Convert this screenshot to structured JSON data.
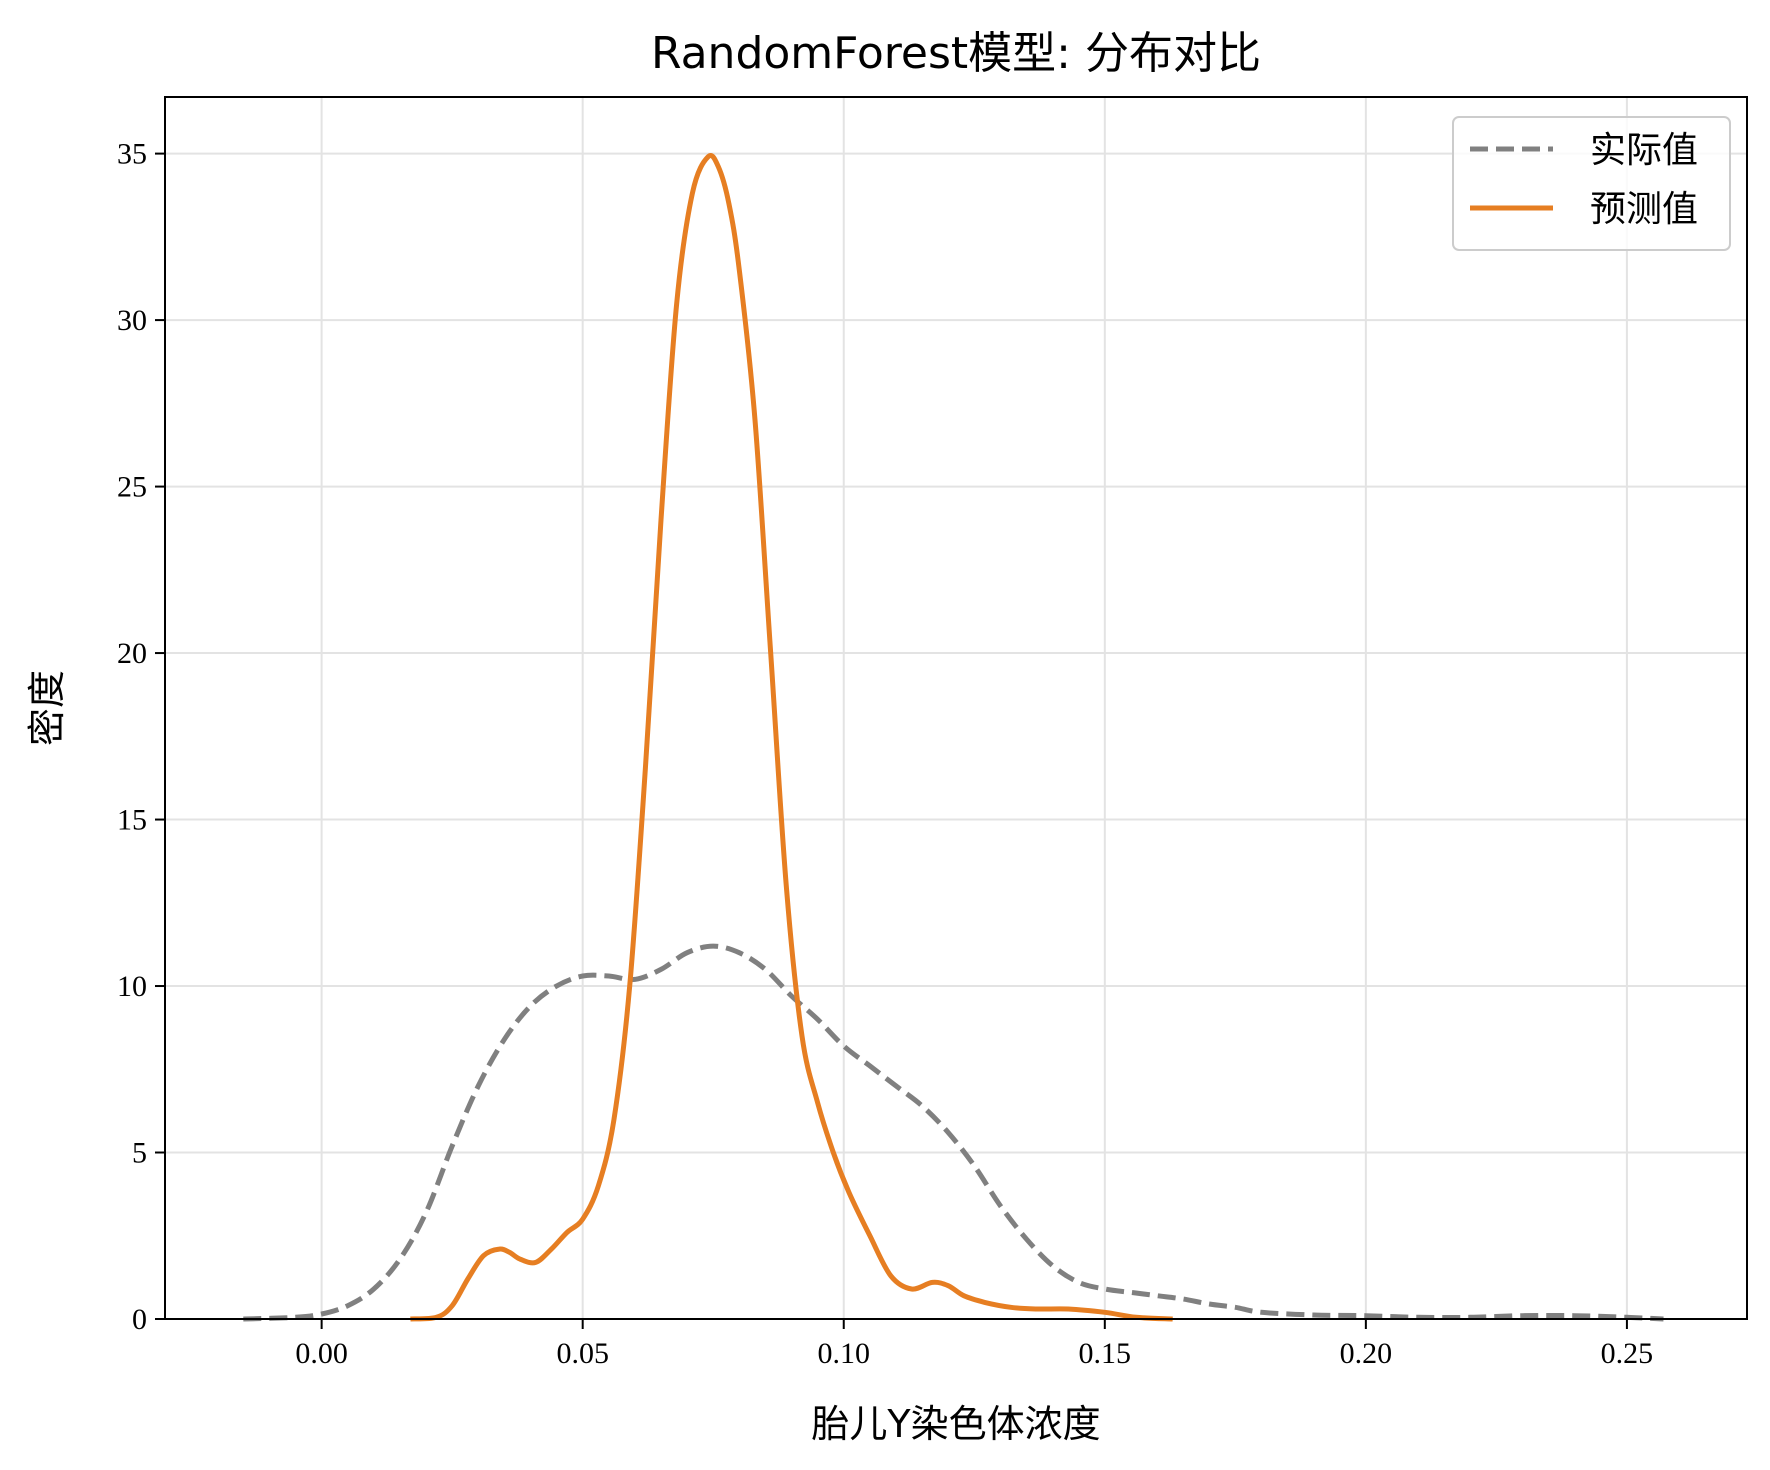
{
  "chart_data": {
    "type": "line",
    "title": "RandomForest模型: 分布对比",
    "xlabel": "胎儿Y染色体浓度",
    "ylabel": "密度",
    "xlim": [
      -0.03,
      0.273
    ],
    "ylim": [
      0,
      36.7
    ],
    "x_ticks": [
      0.0,
      0.05,
      0.1,
      0.15,
      0.2,
      0.25
    ],
    "x_tick_labels": [
      "0.00",
      "0.05",
      "0.10",
      "0.15",
      "0.20",
      "0.25"
    ],
    "y_ticks": [
      0,
      5,
      10,
      15,
      20,
      25,
      30,
      35
    ],
    "y_tick_labels": [
      "0",
      "5",
      "10",
      "15",
      "20",
      "25",
      "30",
      "35"
    ],
    "grid": true,
    "legend": {
      "placement": "top-right"
    },
    "series": [
      {
        "name": "实际值",
        "color": "#808080",
        "style": "dashed",
        "x": [
          -0.015,
          -0.005,
          0.0,
          0.005,
          0.01,
          0.015,
          0.02,
          0.025,
          0.03,
          0.035,
          0.04,
          0.045,
          0.05,
          0.055,
          0.06,
          0.065,
          0.07,
          0.075,
          0.08,
          0.085,
          0.09,
          0.095,
          0.1,
          0.105,
          0.11,
          0.115,
          0.12,
          0.125,
          0.13,
          0.135,
          0.14,
          0.145,
          0.15,
          0.155,
          0.16,
          0.165,
          0.17,
          0.175,
          0.18,
          0.19,
          0.2,
          0.21,
          0.22,
          0.23,
          0.24,
          0.25,
          0.257
        ],
        "y": [
          0.0,
          0.05,
          0.15,
          0.4,
          0.9,
          1.8,
          3.2,
          5.2,
          7.0,
          8.4,
          9.4,
          10.0,
          10.3,
          10.3,
          10.2,
          10.5,
          11.0,
          11.2,
          11.0,
          10.5,
          9.7,
          9.0,
          8.2,
          7.6,
          7.0,
          6.4,
          5.6,
          4.6,
          3.4,
          2.4,
          1.6,
          1.1,
          0.9,
          0.8,
          0.7,
          0.6,
          0.45,
          0.35,
          0.2,
          0.12,
          0.1,
          0.05,
          0.05,
          0.1,
          0.1,
          0.05,
          0.0
        ]
      },
      {
        "name": "预测值",
        "color": "#e67e22",
        "style": "solid",
        "x": [
          0.017,
          0.022,
          0.025,
          0.028,
          0.031,
          0.034,
          0.036,
          0.038,
          0.041,
          0.044,
          0.047,
          0.05,
          0.053,
          0.056,
          0.059,
          0.062,
          0.065,
          0.068,
          0.071,
          0.074,
          0.076,
          0.078,
          0.08,
          0.083,
          0.086,
          0.089,
          0.092,
          0.095,
          0.098,
          0.101,
          0.105,
          0.109,
          0.113,
          0.117,
          0.12,
          0.123,
          0.127,
          0.132,
          0.137,
          0.143,
          0.15,
          0.156,
          0.163
        ],
        "y": [
          0.0,
          0.05,
          0.4,
          1.2,
          1.9,
          2.1,
          2.0,
          1.8,
          1.7,
          2.1,
          2.6,
          3.0,
          4.0,
          6.0,
          10.0,
          16.5,
          24.0,
          30.5,
          33.8,
          34.9,
          34.6,
          33.5,
          31.5,
          27.0,
          20.0,
          13.0,
          8.5,
          6.5,
          5.0,
          3.8,
          2.5,
          1.3,
          0.9,
          1.1,
          1.0,
          0.7,
          0.5,
          0.35,
          0.3,
          0.3,
          0.2,
          0.05,
          0.0
        ]
      }
    ]
  }
}
